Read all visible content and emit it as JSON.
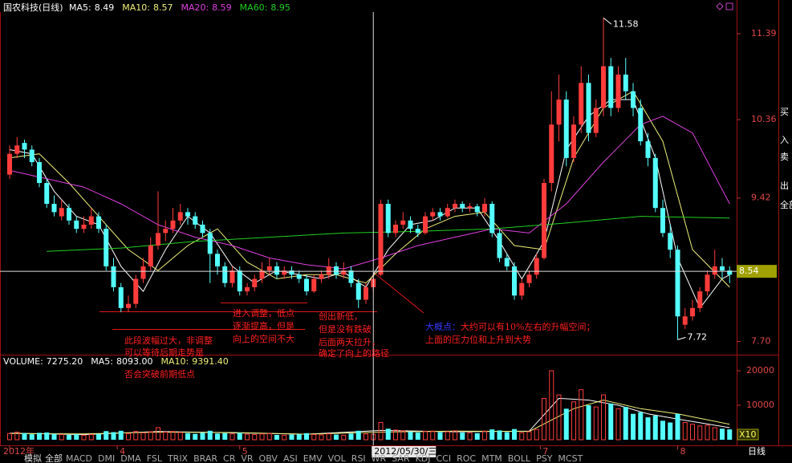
{
  "chart_data": {
    "type": "candlestick",
    "title": "国农科技(日线)",
    "up_color": "#ff3c3c",
    "down_color": "#54ffff",
    "ylim": [
      7.56,
      11.65
    ],
    "yticks": [
      {
        "value": 7.7,
        "label": "7.70"
      },
      9.42,
      10.36,
      11.39
    ],
    "candles": [
      [
        9.7,
        10.05,
        9.65,
        9.95
      ],
      [
        9.95,
        10.15,
        9.9,
        10.05
      ],
      [
        10.08,
        10.12,
        9.9,
        10.0
      ],
      [
        10.0,
        10.05,
        9.8,
        9.85
      ],
      [
        9.85,
        9.9,
        9.55,
        9.6
      ],
      [
        9.6,
        9.65,
        9.3,
        9.35
      ],
      [
        9.35,
        9.45,
        9.2,
        9.25
      ],
      [
        9.2,
        9.4,
        9.15,
        9.3
      ],
      [
        9.3,
        9.35,
        9.1,
        9.15
      ],
      [
        9.15,
        9.2,
        9.0,
        9.05
      ],
      [
        9.05,
        9.2,
        9.0,
        9.1
      ],
      [
        9.1,
        9.3,
        9.05,
        9.2
      ],
      [
        9.2,
        9.25,
        9.0,
        9.05
      ],
      [
        9.05,
        9.1,
        8.55,
        8.6
      ],
      [
        8.6,
        8.7,
        8.3,
        8.35
      ],
      [
        8.35,
        8.4,
        8.05,
        8.1
      ],
      [
        8.1,
        8.25,
        8.05,
        8.15
      ],
      [
        8.15,
        8.5,
        8.1,
        8.45
      ],
      [
        8.45,
        8.7,
        8.4,
        8.6
      ],
      [
        8.6,
        8.95,
        8.55,
        8.85
      ],
      [
        8.85,
        9.5,
        8.8,
        9.0
      ],
      [
        9.0,
        9.15,
        8.9,
        9.05
      ],
      [
        9.05,
        9.3,
        9.0,
        9.15
      ],
      [
        9.15,
        9.35,
        9.1,
        9.25
      ],
      [
        9.25,
        9.3,
        9.1,
        9.2
      ],
      [
        9.2,
        9.25,
        9.05,
        9.1
      ],
      [
        9.1,
        9.15,
        8.95,
        9.0
      ],
      [
        9.0,
        9.05,
        8.4,
        8.75
      ],
      [
        8.75,
        8.8,
        8.5,
        8.6
      ],
      [
        8.6,
        8.65,
        8.35,
        8.4
      ],
      [
        8.4,
        8.6,
        8.35,
        8.55
      ],
      [
        8.55,
        8.6,
        8.25,
        8.3
      ],
      [
        8.3,
        8.4,
        8.25,
        8.35
      ],
      [
        8.35,
        8.5,
        8.3,
        8.45
      ],
      [
        8.45,
        8.65,
        8.4,
        8.55
      ],
      [
        8.55,
        8.7,
        8.5,
        8.6
      ],
      [
        8.6,
        8.65,
        8.45,
        8.5
      ],
      [
        8.5,
        8.6,
        8.45,
        8.55
      ],
      [
        8.55,
        8.6,
        8.45,
        8.5
      ],
      [
        8.5,
        8.55,
        8.4,
        8.45
      ],
      [
        8.45,
        8.5,
        8.25,
        8.3
      ],
      [
        8.3,
        8.5,
        8.28,
        8.45
      ],
      [
        8.45,
        8.55,
        8.4,
        8.5
      ],
      [
        8.5,
        8.7,
        8.45,
        8.6
      ],
      [
        8.6,
        8.65,
        8.45,
        8.5
      ],
      [
        8.5,
        8.65,
        8.45,
        8.55
      ],
      [
        8.55,
        8.6,
        8.35,
        8.4
      ],
      [
        8.4,
        8.45,
        8.1,
        8.2
      ],
      [
        8.2,
        8.4,
        8.15,
        8.35
      ],
      [
        8.35,
        8.5,
        8.3,
        8.45
      ],
      [
        8.5,
        9.4,
        8.48,
        9.35
      ],
      [
        9.35,
        9.4,
        8.95,
        9.0
      ],
      [
        9.0,
        9.15,
        8.95,
        9.1
      ],
      [
        9.1,
        9.25,
        9.05,
        9.15
      ],
      [
        9.15,
        9.2,
        9.0,
        9.05
      ],
      [
        9.05,
        9.1,
        8.95,
        9.0
      ],
      [
        9.0,
        9.25,
        8.98,
        9.2
      ],
      [
        9.2,
        9.3,
        9.15,
        9.25
      ],
      [
        9.25,
        9.3,
        9.15,
        9.2
      ],
      [
        9.2,
        9.35,
        9.18,
        9.3
      ],
      [
        9.3,
        9.4,
        9.25,
        9.35
      ],
      [
        9.35,
        9.38,
        9.25,
        9.3
      ],
      [
        9.3,
        9.36,
        9.25,
        9.32
      ],
      [
        9.32,
        9.35,
        9.2,
        9.25
      ],
      [
        9.25,
        9.42,
        9.2,
        9.35
      ],
      [
        9.35,
        9.38,
        8.95,
        9.0
      ],
      [
        9.0,
        9.05,
        8.65,
        8.7
      ],
      [
        8.7,
        8.75,
        8.55,
        8.6
      ],
      [
        8.6,
        8.65,
        8.2,
        8.25
      ],
      [
        8.25,
        8.45,
        8.2,
        8.4
      ],
      [
        8.4,
        8.55,
        8.35,
        8.5
      ],
      [
        8.5,
        8.75,
        8.45,
        8.7
      ],
      [
        8.7,
        9.65,
        8.68,
        9.6
      ],
      [
        9.6,
        10.7,
        9.5,
        10.3
      ],
      [
        10.3,
        10.9,
        10.1,
        10.6
      ],
      [
        10.6,
        10.7,
        9.8,
        9.9
      ],
      [
        9.9,
        10.4,
        9.85,
        10.3
      ],
      [
        10.3,
        11.0,
        10.2,
        10.8
      ],
      [
        10.8,
        10.9,
        10.1,
        10.2
      ],
      [
        10.2,
        10.6,
        10.15,
        10.5
      ],
      [
        10.5,
        11.58,
        10.4,
        11.0
      ],
      [
        11.0,
        11.1,
        10.4,
        10.5
      ],
      [
        10.5,
        11.0,
        10.45,
        10.9
      ],
      [
        10.9,
        11.1,
        10.6,
        10.7
      ],
      [
        10.7,
        10.8,
        10.4,
        10.5
      ],
      [
        10.5,
        10.6,
        10.05,
        10.1
      ],
      [
        10.1,
        10.2,
        9.8,
        9.9
      ],
      [
        9.9,
        9.95,
        9.25,
        9.3
      ],
      [
        9.3,
        9.4,
        8.95,
        9.0
      ],
      [
        9.0,
        9.1,
        8.7,
        8.8
      ],
      [
        8.8,
        8.85,
        7.72,
        8.0
      ],
      [
        7.9,
        8.1,
        7.85,
        8.0
      ],
      [
        8.0,
        8.2,
        7.95,
        8.1
      ],
      [
        8.1,
        8.35,
        8.05,
        8.3
      ],
      [
        8.3,
        8.55,
        8.25,
        8.5
      ],
      [
        8.5,
        8.8,
        8.45,
        8.6
      ],
      [
        8.6,
        8.7,
        8.45,
        8.55
      ],
      [
        8.55,
        8.6,
        8.4,
        8.5
      ]
    ],
    "ma": [
      {
        "label": "MA5:",
        "last": 8.49,
        "color": "#ffffff",
        "x": [
          0,
          3,
          6,
          9,
          12,
          15,
          18,
          21,
          24,
          27,
          30,
          33,
          36,
          39,
          42,
          45,
          48,
          51,
          54,
          57,
          60,
          63,
          66,
          69,
          72,
          75,
          78,
          81,
          84,
          87,
          90,
          93,
          96,
          97
        ],
        "values": [
          10.0,
          9.95,
          9.5,
          9.2,
          9.1,
          8.6,
          8.3,
          8.8,
          9.2,
          9.0,
          8.6,
          8.4,
          8.55,
          8.5,
          8.45,
          8.53,
          8.35,
          8.8,
          9.1,
          9.15,
          9.3,
          9.3,
          8.9,
          8.45,
          8.9,
          10.0,
          10.4,
          10.6,
          10.6,
          9.9,
          8.7,
          8.1,
          8.45,
          8.5
        ]
      },
      {
        "label": "MA10:",
        "last": 8.57,
        "color": "#f0f07a",
        "x": [
          0,
          4,
          8,
          12,
          16,
          20,
          24,
          28,
          32,
          36,
          40,
          44,
          48,
          52,
          56,
          60,
          64,
          68,
          72,
          76,
          80,
          84,
          88,
          92,
          97
        ],
        "values": [
          9.9,
          9.95,
          9.6,
          9.2,
          8.8,
          8.55,
          8.85,
          9.05,
          8.65,
          8.45,
          8.5,
          8.5,
          8.4,
          8.75,
          9.05,
          9.2,
          9.25,
          8.85,
          8.8,
          9.9,
          10.5,
          10.7,
          10.1,
          8.8,
          8.35
        ]
      },
      {
        "label": "MA20:",
        "last": 8.59,
        "color": "#e040e0",
        "x": [
          0,
          5,
          10,
          15,
          20,
          25,
          30,
          35,
          40,
          45,
          50,
          55,
          60,
          65,
          70,
          75,
          80,
          85,
          88,
          92,
          97
        ],
        "values": [
          9.75,
          9.65,
          9.55,
          9.35,
          9.1,
          8.95,
          8.85,
          8.7,
          8.62,
          8.57,
          8.7,
          8.85,
          8.95,
          9.05,
          9.0,
          9.35,
          9.85,
          10.3,
          10.4,
          10.2,
          9.35
        ]
      },
      {
        "label": "MA60:",
        "last": 8.95,
        "color": "#20d020",
        "x": [
          5,
          15,
          25,
          35,
          45,
          55,
          65,
          75,
          85,
          97
        ],
        "values": [
          8.78,
          8.82,
          8.9,
          8.95,
          9.0,
          9.02,
          9.05,
          9.12,
          9.2,
          9.18
        ]
      }
    ],
    "volume": {
      "label": "VOLUME:",
      "last": 7275.2,
      "last_label": "7275.20",
      "ylim": [
        0,
        23500
      ],
      "yticks": [
        10000,
        20000
      ],
      "values": [
        1800,
        2200,
        1900,
        1600,
        2000,
        2100,
        1700,
        1500,
        1400,
        1600,
        1300,
        1500,
        1700,
        2500,
        2200,
        2600,
        1800,
        2400,
        2000,
        2300,
        3500,
        2200,
        2400,
        2100,
        1900,
        1700,
        2000,
        2600,
        1800,
        1900,
        1700,
        2000,
        1600,
        1500,
        1700,
        1800,
        1400,
        1300,
        1500,
        1600,
        1900,
        1500,
        1400,
        1700,
        1500,
        1300,
        1800,
        2600,
        1700,
        1600,
        5000,
        3200,
        2800,
        2600,
        2300,
        2100,
        2400,
        2500,
        2200,
        2300,
        2600,
        2100,
        2000,
        1900,
        2500,
        3000,
        2700,
        2200,
        3100,
        2000,
        2300,
        3000,
        12000,
        20000,
        13000,
        9000,
        11000,
        14500,
        10000,
        9500,
        13000,
        10500,
        9000,
        9500,
        7500,
        8000,
        6500,
        7000,
        5500,
        5000,
        7500,
        5000,
        4500,
        4000,
        4200,
        3500,
        3200,
        3000
      ],
      "ma": [
        {
          "label": "MA5:",
          "last": 8093,
          "last_label": "8093.00",
          "color": "#ffffff",
          "x": [
            0,
            10,
            20,
            30,
            40,
            50,
            60,
            70,
            74,
            78,
            82,
            86,
            90,
            97
          ],
          "values": [
            1900,
            1500,
            2400,
            2000,
            1600,
            2700,
            2300,
            2500,
            12000,
            11500,
            10000,
            7500,
            6000,
            3500
          ]
        },
        {
          "label": "MA10:",
          "last": 9391.4,
          "last_label": "9391.40",
          "color": "#f0f07a",
          "x": [
            0,
            10,
            20,
            30,
            40,
            50,
            60,
            70,
            76,
            80,
            85,
            90,
            97
          ],
          "values": [
            1800,
            1700,
            2200,
            2100,
            1600,
            2200,
            2500,
            2400,
            9000,
            11500,
            9000,
            7500,
            4500
          ]
        }
      ],
      "scale_label": "X10"
    },
    "date_ticks": [
      {
        "value": 0,
        "label": "2012年"
      },
      {
        "value": 14.5,
        "label": "4"
      },
      {
        "value": 31,
        "label": "5"
      },
      {
        "value": 71.5,
        "label": "7"
      },
      {
        "value": 90,
        "label": "8"
      }
    ],
    "crosshair": {
      "index": 49,
      "value": 8.54,
      "date": "2012/05/30/三"
    },
    "annotations": [
      {
        "lines": [
          "此段波幅过大，非调整",
          "可以等待后期走势是",
          "否会突破前期低点"
        ]
      },
      {
        "lines": [
          "进入调整，低点",
          "逐渐提高，但是",
          "向上的空间不大"
        ]
      },
      {
        "lines": [
          "创出新低，",
          "但是没有跌破",
          "后面两天拉升，",
          "确定了向上的路径"
        ]
      },
      {
        "lead": "大概点：",
        "lines": [
          "大约可以有10%左右的升幅空间；",
          "上面的压力位和上升到大势"
        ]
      }
    ],
    "side_buttons": [
      "买",
      "入",
      "卖",
      "出",
      "全部"
    ],
    "period": "日线",
    "tabs": [
      "模拟",
      "全部"
    ],
    "indicators": [
      "MACD",
      "DMI",
      "DMA",
      "FSL",
      "TRIX",
      "BRAR",
      "CR",
      "VR",
      "OBV",
      "ASI",
      "EMV",
      "VOL",
      "RSI",
      "WR",
      "SAR",
      "KDJ",
      "CCI",
      "ROC",
      "MTM",
      "BOLL",
      "PSY",
      "MCST"
    ]
  }
}
